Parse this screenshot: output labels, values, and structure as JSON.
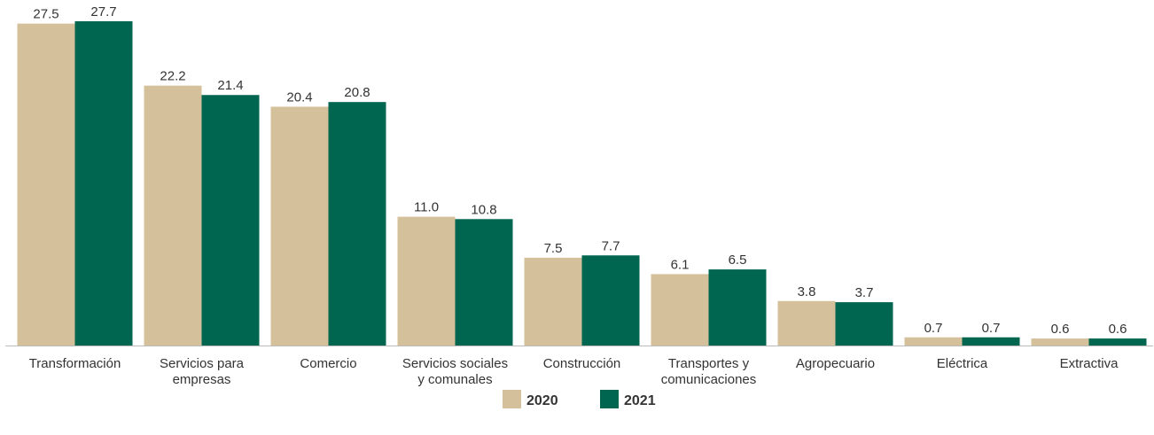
{
  "chart_data": {
    "type": "bar",
    "categories": [
      "Transformación",
      "Servicios para\nempresas",
      "Comercio",
      "Servicios sociales\ny comunales",
      "Construcción",
      "Transportes y\ncomunicaciones",
      "Agropecuario",
      "Eléctrica",
      "Extractiva"
    ],
    "series": [
      {
        "name": "2020",
        "color": "#d4c09a",
        "values": [
          27.5,
          22.2,
          20.4,
          11.0,
          7.5,
          6.1,
          3.8,
          0.7,
          0.6
        ],
        "value_labels": [
          "27.5",
          "22.2",
          "20.4",
          "11.0",
          "7.5",
          "6.1",
          "3.8",
          "0.7",
          "0.6"
        ]
      },
      {
        "name": "2021",
        "color": "#006650",
        "values": [
          27.7,
          21.4,
          20.8,
          10.8,
          7.7,
          6.5,
          3.7,
          0.7,
          0.6
        ],
        "value_labels": [
          "27.7",
          "21.4",
          "20.8",
          "10.8",
          "7.7",
          "6.5",
          "3.7",
          "0.7",
          "0.6"
        ]
      }
    ],
    "legend": "bottom"
  }
}
